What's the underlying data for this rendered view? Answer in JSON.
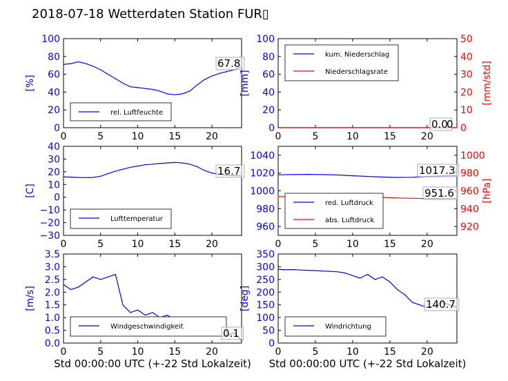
{
  "page": {
    "title": "2018-07-18 Wetterdaten Station FUR▯"
  },
  "colors": {
    "primary": "#0000ff",
    "secondary": "#ff0000",
    "axis": "#000000",
    "background": "#ffffff"
  },
  "chart_data": [
    {
      "id": "humidity",
      "type": "line",
      "ylabel": "[%]",
      "xlim": [
        0,
        24
      ],
      "ylim": [
        0,
        100
      ],
      "xticks": [
        "0",
        "5",
        "10",
        "15",
        "20"
      ],
      "yticks": [
        "0",
        "20",
        "40",
        "60",
        "80",
        "100"
      ],
      "legend": {
        "placement": "lower-left",
        "entries": [
          "rel. Luftfeuchte"
        ]
      },
      "annotation": "67.8",
      "series": [
        {
          "name": "rel. Luftfeuchte",
          "x": [
            0,
            1,
            2,
            3,
            4,
            5,
            6,
            7,
            8,
            9,
            10,
            11,
            12,
            13,
            14,
            15,
            16,
            17,
            18,
            19,
            20,
            21,
            22,
            23,
            24
          ],
          "y": [
            71,
            72,
            74,
            72,
            69,
            65,
            60,
            55,
            50,
            46,
            45,
            44,
            43,
            41,
            38,
            37,
            38,
            41,
            48,
            54,
            58,
            61,
            63,
            65,
            68
          ]
        }
      ]
    },
    {
      "id": "precipitation",
      "type": "line",
      "ylabel": "[mm]",
      "ylabel_right": "[mm/std]",
      "xlim": [
        0,
        24
      ],
      "ylim": [
        0,
        100
      ],
      "ylim_right": [
        0,
        50
      ],
      "xticks": [
        "0",
        "5",
        "10",
        "15",
        "20"
      ],
      "yticks": [
        "0",
        "20",
        "40",
        "60",
        "80",
        "100"
      ],
      "yticks_right": [
        "0",
        "10",
        "20",
        "30",
        "40",
        "50"
      ],
      "legend": {
        "placement": "upper-left",
        "entries": [
          "kum. Niederschlag",
          "Niederschlagsrate"
        ]
      },
      "annotation": "0.0",
      "annotation_overlap": "0",
      "series": [
        {
          "name": "kum. Niederschlag",
          "axis": "left",
          "x": [
            0,
            24
          ],
          "y": [
            0,
            0
          ]
        },
        {
          "name": "Niederschlagsrate",
          "axis": "right",
          "x": [
            0,
            24
          ],
          "y": [
            0,
            0
          ]
        }
      ]
    },
    {
      "id": "temperature",
      "type": "line",
      "ylabel": "[C]",
      "xlim": [
        0,
        24
      ],
      "ylim": [
        -30,
        40
      ],
      "xticks": [
        "0",
        "5",
        "10",
        "15",
        "20"
      ],
      "yticks": [
        "−30",
        "−20",
        "−10",
        "0",
        "10",
        "20",
        "30",
        "40"
      ],
      "legend": {
        "placement": "lower-left",
        "entries": [
          "Lufttemperatur"
        ]
      },
      "annotation": "16.7",
      "series": [
        {
          "name": "Lufttemperatur",
          "x": [
            0,
            1,
            2,
            3,
            4,
            5,
            6,
            7,
            8,
            9,
            10,
            11,
            12,
            13,
            14,
            15,
            16,
            17,
            18,
            19,
            20,
            21,
            22,
            23,
            24
          ],
          "y": [
            16,
            15.8,
            15.5,
            15.4,
            15.6,
            16.5,
            18.5,
            20.5,
            22,
            23.5,
            24.5,
            25.5,
            26,
            26.5,
            27,
            27.3,
            27,
            26,
            24,
            21,
            19,
            18,
            17.3,
            17,
            16.7
          ]
        }
      ]
    },
    {
      "id": "pressure",
      "type": "line",
      "ylabel_right": "[hPa]",
      "xlim": [
        0,
        24
      ],
      "ylim": [
        950,
        1050
      ],
      "ylim_right": [
        910,
        1010
      ],
      "xticks": [
        "0",
        "5",
        "10",
        "15",
        "20"
      ],
      "yticks": [
        "960",
        "980",
        "1000",
        "1020",
        "1040"
      ],
      "yticks_right": [
        "920",
        "940",
        "960",
        "980",
        "1000"
      ],
      "legend": {
        "placement": "lower-left",
        "entries": [
          "red. Luftdruck",
          "abs. Luftdruck"
        ]
      },
      "annotations": [
        "1017.3",
        "951.6"
      ],
      "series": [
        {
          "name": "red. Luftdruck",
          "axis": "left",
          "x": [
            0,
            2,
            4,
            6,
            8,
            10,
            12,
            14,
            16,
            18,
            20,
            22,
            24
          ],
          "y": [
            1018,
            1018.3,
            1018.5,
            1018.2,
            1017.8,
            1017,
            1016.2,
            1015.5,
            1015,
            1015.3,
            1016,
            1016.8,
            1017.3
          ]
        },
        {
          "name": "abs. Luftdruck",
          "axis": "right",
          "x": [
            0,
            2,
            4,
            6,
            8,
            10,
            12,
            14,
            16,
            18,
            20,
            22,
            24
          ],
          "y": [
            953.5,
            953.3,
            953,
            953.8,
            954.3,
            954,
            953.3,
            952.6,
            952,
            951.6,
            951.3,
            951.4,
            951.6
          ]
        }
      ]
    },
    {
      "id": "windspeed",
      "type": "line",
      "ylabel": "[m/s]",
      "xlabel": "Std 00:00:00 UTC (+-22 Std Lokalzeit)",
      "xlim": [
        0,
        24
      ],
      "ylim": [
        0,
        3.5
      ],
      "xticks": [
        "0",
        "5",
        "10",
        "15",
        "20"
      ],
      "yticks": [
        "0.0",
        "0.5",
        "1.0",
        "1.5",
        "2.0",
        "2.5",
        "3.0",
        "3.5"
      ],
      "legend": {
        "placement": "lower-left",
        "entries": [
          "Windgeschwindigkeit"
        ]
      },
      "annotation": "0.1",
      "series": [
        {
          "name": "Windgeschwindigkeit",
          "x": [
            0,
            1,
            2,
            3,
            4,
            5,
            6,
            7,
            8,
            9,
            10,
            11,
            12,
            13,
            14,
            15,
            16,
            17,
            18,
            19,
            20,
            21,
            22,
            23,
            24
          ],
          "y": [
            2.3,
            2.1,
            2.2,
            2.4,
            2.6,
            2.5,
            2.6,
            2.7,
            1.5,
            1.2,
            1.3,
            1.1,
            1.2,
            1.0,
            1.1,
            0.9,
            0.8,
            0.6,
            0.4,
            0.3,
            0.3,
            0.35,
            0.3,
            0.4,
            0.1
          ]
        }
      ]
    },
    {
      "id": "winddirection",
      "type": "line",
      "ylabel": "[deg]",
      "xlabel": "Std 00:00:00 UTC (+-22 Std Lokalzeit)",
      "xlim": [
        0,
        24
      ],
      "ylim": [
        0,
        350
      ],
      "xticks": [
        "0",
        "5",
        "10",
        "15",
        "20"
      ],
      "yticks": [
        "0",
        "50",
        "100",
        "150",
        "200",
        "250",
        "300",
        "350"
      ],
      "legend": {
        "placement": "lower-left",
        "entries": [
          "Windrichtung"
        ]
      },
      "annotation": "140.7",
      "series": [
        {
          "name": "Windrichtung",
          "x": [
            0,
            1,
            2,
            3,
            4,
            5,
            6,
            7,
            8,
            9,
            10,
            11,
            12,
            13,
            14,
            15,
            16,
            17,
            18,
            19,
            20,
            21,
            22,
            23,
            24
          ],
          "y": [
            290,
            288,
            289,
            287,
            286,
            285,
            283,
            282,
            280,
            275,
            265,
            255,
            270,
            250,
            260,
            240,
            210,
            190,
            160,
            150,
            140,
            145,
            160,
            150,
            141
          ]
        }
      ]
    }
  ]
}
